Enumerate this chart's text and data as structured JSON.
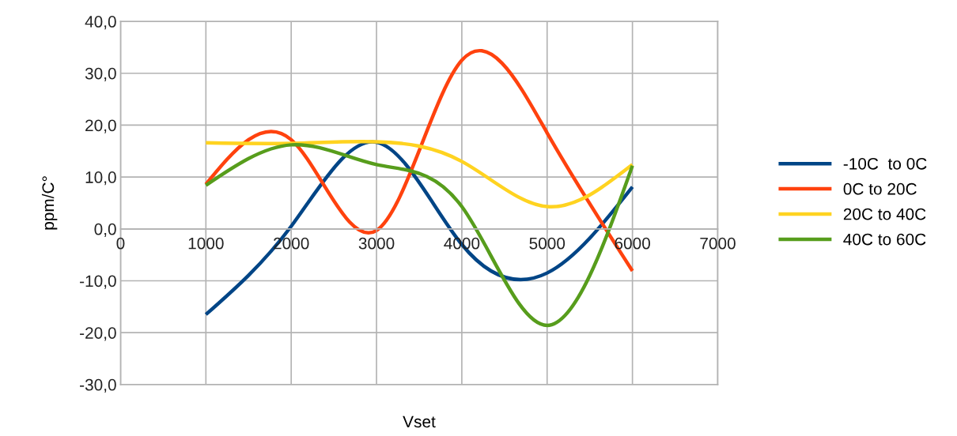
{
  "chart_data": {
    "type": "line",
    "xlabel": "Vset",
    "ylabel": "ppm/C°",
    "x": [
      1000,
      2000,
      3000,
      4000,
      5000,
      6000
    ],
    "series": [
      {
        "name": "-10C  to 0C",
        "color": "#004586",
        "values": [
          -16.5,
          0.5,
          16.7,
          -3.0,
          -8.5,
          8.1
        ]
      },
      {
        "name": "0C to 20C",
        "color": "#ff420e",
        "values": [
          8.6,
          17.2,
          -0.3,
          32.5,
          18.5,
          -8.1
        ]
      },
      {
        "name": "20C to 40C",
        "color": "#ffd320",
        "values": [
          16.6,
          16.5,
          16.8,
          13.0,
          4.3,
          12.4
        ]
      },
      {
        "name": "40C to 60C",
        "color": "#579d1c",
        "values": [
          8.4,
          16.2,
          12.4,
          4.3,
          -18.6,
          12.2
        ]
      }
    ],
    "xlim": [
      0,
      7000
    ],
    "xticks": [
      0,
      1000,
      2000,
      3000,
      4000,
      5000,
      6000,
      7000
    ],
    "ylim": [
      -30,
      40
    ],
    "yticks": [
      {
        "value": -30,
        "label": "-30,0"
      },
      {
        "value": -20,
        "label": "-20,0"
      },
      {
        "value": -10,
        "label": "-10,0"
      },
      {
        "value": 0,
        "label": "0,0"
      },
      {
        "value": 10,
        "label": "10,0"
      },
      {
        "value": 20,
        "label": "20,0"
      },
      {
        "value": 30,
        "label": "30,0"
      },
      {
        "value": 40,
        "label": "40,0"
      }
    ],
    "grid": true,
    "legend": "right",
    "marker": "none",
    "line_style": "solid"
  }
}
